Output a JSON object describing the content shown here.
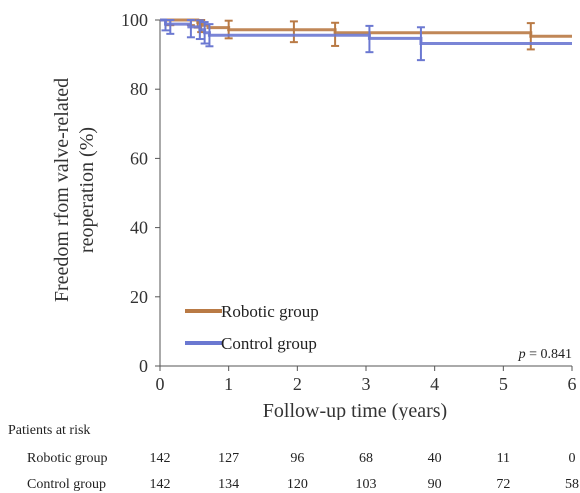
{
  "chart_data": {
    "type": "line",
    "subtype": "kaplan-meier",
    "xlabel": "Follow-up time (years)",
    "ylabel": "Freedom rfom valve-related reoperation (%)",
    "ylabel_lines": [
      "Freedom rfom valve-related",
      "reoperation (%)"
    ],
    "xlim": [
      0,
      6
    ],
    "ylim": [
      0,
      100
    ],
    "xticks": [
      "0",
      "1",
      "2",
      "3",
      "4",
      "5",
      "6"
    ],
    "yticks": [
      "0",
      "20",
      "40",
      "60",
      "80",
      "100"
    ],
    "grid": false,
    "legend": {
      "placement": "bottom-left"
    },
    "pvalue": {
      "prefix": "p",
      "text": " = 0.841"
    },
    "series": [
      {
        "name": "Robotic group",
        "color": "#b97a45",
        "steps": [
          [
            0,
            100
          ],
          [
            0.55,
            99.3
          ],
          [
            0.62,
            98.5
          ],
          [
            0.7,
            97.8
          ],
          [
            1.0,
            97.2
          ],
          [
            2.55,
            96.3
          ],
          [
            5.4,
            95.3
          ],
          [
            6.0,
            95.3
          ]
        ],
        "error_bars": [
          {
            "x": 0.15,
            "y": 99.6,
            "low": 98.5,
            "high": 100
          },
          {
            "x": 0.45,
            "y": 99.4,
            "low": 98.5,
            "high": 100
          },
          {
            "x": 0.55,
            "y": 99.3,
            "low": 97.8,
            "high": 100
          },
          {
            "x": 0.6,
            "y": 99.0,
            "low": 96.5,
            "high": 100
          },
          {
            "x": 1.0,
            "y": 97.2,
            "low": 94.7,
            "high": 99.8
          },
          {
            "x": 1.95,
            "y": 96.8,
            "low": 93.6,
            "high": 99.6
          },
          {
            "x": 2.55,
            "y": 96.0,
            "low": 92.5,
            "high": 99.2
          },
          {
            "x": 5.4,
            "y": 95.3,
            "low": 91.5,
            "high": 99.1
          }
        ]
      },
      {
        "name": "Control group",
        "color": "#6b78d1",
        "steps": [
          [
            0,
            100
          ],
          [
            0.08,
            98.8
          ],
          [
            0.42,
            98.0
          ],
          [
            0.58,
            97.2
          ],
          [
            0.65,
            96.3
          ],
          [
            0.72,
            95.6
          ],
          [
            3.05,
            94.7
          ],
          [
            3.8,
            93.2
          ],
          [
            6.0,
            93.2
          ]
        ],
        "error_bars": [
          {
            "x": 0.08,
            "y": 98.8,
            "low": 97.0,
            "high": 100
          },
          {
            "x": 0.15,
            "y": 98.4,
            "low": 96.0,
            "high": 100
          },
          {
            "x": 0.45,
            "y": 97.8,
            "low": 95.0,
            "high": 100
          },
          {
            "x": 0.58,
            "y": 97.2,
            "low": 94.5,
            "high": 99.9
          },
          {
            "x": 0.65,
            "y": 96.3,
            "low": 93.2,
            "high": 99.4
          },
          {
            "x": 0.72,
            "y": 95.6,
            "low": 92.4,
            "high": 98.8
          },
          {
            "x": 3.05,
            "y": 94.7,
            "low": 90.7,
            "high": 98.3
          },
          {
            "x": 3.8,
            "y": 93.2,
            "low": 88.4,
            "high": 97.9
          }
        ]
      }
    ]
  },
  "risk_table": {
    "title": "Patients at risk",
    "rows": [
      {
        "label": "Robotic group",
        "values": [
          "142",
          "127",
          "96",
          "68",
          "40",
          "11",
          "0"
        ]
      },
      {
        "label": "Control group",
        "values": [
          "142",
          "134",
          "120",
          "103",
          "90",
          "72",
          "58"
        ]
      }
    ]
  }
}
